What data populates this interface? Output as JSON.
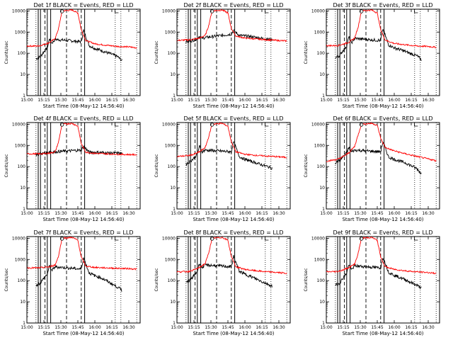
{
  "window": {
    "background": "#ffffff"
  },
  "chart_data": {
    "type": "line",
    "colors": {
      "events": "#000000",
      "lld": "#ff0000"
    },
    "y_scale": "log",
    "ylim": [
      1,
      12000
    ],
    "yticks": [
      1,
      10,
      100,
      1000,
      10000
    ],
    "ytick_labels": [
      "1",
      "10",
      "100",
      "1000",
      "10000"
    ],
    "xlim": [
      "15:00",
      "16:40"
    ],
    "xticks": [
      "15:00",
      "15:15",
      "15:30",
      "15:45",
      "16:00",
      "16:15",
      "16:30"
    ],
    "xlabel": "Start Time (08-May-12 14:56:40)",
    "ylabel": "Counts/sec",
    "marker_lines": {
      "solid": [
        "15:10",
        "15:12",
        "15:18",
        "15:21",
        "15:51"
      ],
      "dashed": [
        "15:16",
        "15:35",
        "15:48"
      ],
      "dotted": [
        "15:08",
        "16:18",
        "16:23",
        "16:37"
      ]
    },
    "panels": [
      {
        "title": "Det 1f BLACK = Events, RED = LLD",
        "series": [
          {
            "name": "BLACK = Events",
            "x": [
              "15:08",
              "15:12",
              "15:15",
              "15:18",
              "15:20",
              "15:22",
              "15:25",
              "15:48",
              "15:50",
              "15:55",
              "16:00",
              "16:05",
              "16:10",
              "16:15",
              "16:20",
              "16:24"
            ],
            "values": [
              55,
              70,
              120,
              180,
              500,
              300,
              450,
              350,
              1200,
              230,
              170,
              140,
              110,
              90,
              70,
              45
            ]
          },
          {
            "name": "RED = LLD",
            "x": [
              "15:00",
              "15:10",
              "15:15",
              "15:20",
              "15:25",
              "15:28",
              "15:31",
              "15:40",
              "15:45",
              "15:48",
              "15:52",
              "16:00",
              "16:10",
              "16:20",
              "16:30",
              "16:37"
            ],
            "values": [
              220,
              220,
              260,
              320,
              500,
              1500,
              10000,
              11000,
              8000,
              1300,
              400,
              280,
              240,
              210,
              200,
              180
            ]
          }
        ]
      },
      {
        "title": "Det 2f BLACK = Events, RED = LLD",
        "series": [
          {
            "name": "BLACK = Events",
            "x": [
              "15:08",
              "15:12",
              "15:15",
              "15:18",
              "15:20",
              "15:22",
              "15:25",
              "15:48",
              "15:50",
              "15:55",
              "16:00",
              "16:05",
              "16:10",
              "16:15",
              "16:20",
              "16:24"
            ],
            "values": [
              350,
              380,
              420,
              500,
              650,
              500,
              550,
              800,
              1200,
              700,
              650,
              620,
              560,
              500,
              470,
              440
            ]
          },
          {
            "name": "RED = LLD",
            "x": [
              "15:00",
              "15:10",
              "15:15",
              "15:20",
              "15:25",
              "15:28",
              "15:31",
              "15:40",
              "15:45",
              "15:48",
              "15:52",
              "16:00",
              "16:10",
              "16:20",
              "16:30",
              "16:37"
            ],
            "values": [
              400,
              430,
              460,
              520,
              700,
              2000,
              10000,
              11000,
              8000,
              1500,
              650,
              520,
              470,
              430,
              400,
              380
            ]
          }
        ]
      },
      {
        "title": "Det 3f BLACK = Events, RED = LLD",
        "series": [
          {
            "name": "BLACK = Events",
            "x": [
              "15:08",
              "15:12",
              "15:15",
              "15:18",
              "15:20",
              "15:22",
              "15:25",
              "15:48",
              "15:50",
              "15:55",
              "16:00",
              "16:05",
              "16:10",
              "16:15",
              "16:20",
              "16:24"
            ],
            "values": [
              60,
              80,
              140,
              220,
              600,
              300,
              500,
              400,
              1400,
              250,
              180,
              150,
              120,
              95,
              75,
              50
            ]
          },
          {
            "name": "RED = LLD",
            "x": [
              "15:00",
              "15:10",
              "15:15",
              "15:20",
              "15:25",
              "15:28",
              "15:31",
              "15:40",
              "15:45",
              "15:48",
              "15:52",
              "16:00",
              "16:10",
              "16:20",
              "16:30",
              "16:37"
            ],
            "values": [
              230,
              230,
              270,
              330,
              520,
              1600,
              10000,
              11000,
              8000,
              1300,
              420,
              290,
              250,
              220,
              210,
              190
            ]
          }
        ]
      },
      {
        "title": "Det 4f BLACK = Events, RED = LLD",
        "series": [
          {
            "name": "BLACK = Events",
            "x": [
              "15:08",
              "15:12",
              "15:15",
              "15:18",
              "15:20",
              "15:22",
              "15:25",
              "15:48",
              "15:50",
              "15:55",
              "16:00",
              "16:05",
              "16:10",
              "16:15",
              "16:20",
              "16:24"
            ],
            "values": [
              380,
              400,
              420,
              450,
              520,
              480,
              500,
              600,
              900,
              480,
              470,
              460,
              450,
              440,
              430,
              420
            ]
          },
          {
            "name": "RED = LLD",
            "x": [
              "15:00",
              "15:10",
              "15:15",
              "15:20",
              "15:25",
              "15:28",
              "15:31",
              "15:40",
              "15:45",
              "15:48",
              "15:52",
              "16:00",
              "16:10",
              "16:20",
              "16:30",
              "16:37"
            ],
            "values": [
              400,
              400,
              410,
              430,
              500,
              1500,
              10000,
              11000,
              8000,
              1200,
              480,
              420,
              400,
              380,
              370,
              360
            ]
          }
        ]
      },
      {
        "title": "Det 5f BLACK = Events, RED = LLD",
        "series": [
          {
            "name": "BLACK = Events",
            "x": [
              "15:08",
              "15:12",
              "15:15",
              "15:18",
              "15:20",
              "15:22",
              "15:25",
              "15:48",
              "15:50",
              "15:55",
              "16:00",
              "16:05",
              "16:10",
              "16:15",
              "16:20",
              "16:24"
            ],
            "values": [
              130,
              180,
              250,
              400,
              900,
              500,
              600,
              500,
              1500,
              300,
              220,
              180,
              150,
              120,
              100,
              85
            ]
          },
          {
            "name": "RED = LLD",
            "x": [
              "15:00",
              "15:10",
              "15:15",
              "15:20",
              "15:25",
              "15:28",
              "15:31",
              "15:40",
              "15:45",
              "15:48",
              "15:52",
              "16:00",
              "16:10",
              "16:20",
              "16:30",
              "16:37"
            ],
            "values": [
              300,
              330,
              380,
              500,
              800,
              2500,
              10000,
              11000,
              8000,
              1500,
              500,
              380,
              340,
              310,
              290,
              270
            ]
          }
        ]
      },
      {
        "title": "Det 6f BLACK = Events, RED = LLD",
        "series": [
          {
            "name": "BLACK = Events",
            "x": [
              "15:08",
              "15:12",
              "15:15",
              "15:18",
              "15:20",
              "15:22",
              "15:25",
              "15:48",
              "15:50",
              "15:55",
              "16:00",
              "16:05",
              "16:10",
              "16:15",
              "16:20",
              "16:24"
            ],
            "values": [
              150,
              200,
              300,
              450,
              800,
              500,
              600,
              500,
              1500,
              280,
              220,
              180,
              150,
              110,
              80,
              45
            ]
          },
          {
            "name": "RED = LLD",
            "x": [
              "15:00",
              "15:10",
              "15:15",
              "15:20",
              "15:25",
              "15:28",
              "15:31",
              "15:40",
              "15:45",
              "15:48",
              "15:52",
              "16:00",
              "16:10",
              "16:20",
              "16:30",
              "16:37"
            ],
            "values": [
              180,
              220,
              300,
              450,
              900,
              3000,
              10000,
              11000,
              9000,
              2200,
              800,
              550,
              400,
              300,
              230,
              190
            ]
          }
        ]
      },
      {
        "title": "Det 7f BLACK = Events, RED = LLD",
        "series": [
          {
            "name": "BLACK = Events",
            "x": [
              "15:08",
              "15:12",
              "15:15",
              "15:18",
              "15:20",
              "15:22",
              "15:25",
              "15:48",
              "15:50",
              "15:55",
              "16:00",
              "16:05",
              "16:10",
              "16:15",
              "16:20",
              "16:24"
            ],
            "values": [
              60,
              80,
              130,
              200,
              500,
              300,
              450,
              350,
              1200,
              230,
              170,
              140,
              100,
              70,
              50,
              35
            ]
          },
          {
            "name": "RED = LLD",
            "x": [
              "15:00",
              "15:10",
              "15:15",
              "15:20",
              "15:25",
              "15:28",
              "15:31",
              "15:40",
              "15:45",
              "15:48",
              "15:52",
              "16:00",
              "16:10",
              "16:20",
              "16:30",
              "16:37"
            ],
            "values": [
              400,
              400,
              420,
              450,
              550,
              1500,
              10000,
              11000,
              8000,
              1300,
              480,
              420,
              400,
              380,
              370,
              350
            ]
          }
        ]
      },
      {
        "title": "Det 8f BLACK = Events, RED = LLD",
        "series": [
          {
            "name": "BLACK = Events",
            "x": [
              "15:08",
              "15:12",
              "15:15",
              "15:18",
              "15:20",
              "15:22",
              "15:25",
              "15:48",
              "15:50",
              "15:55",
              "16:00",
              "16:05",
              "16:10",
              "16:15",
              "16:20",
              "16:24"
            ],
            "values": [
              80,
              110,
              170,
              280,
              700,
              400,
              550,
              450,
              1400,
              280,
              200,
              160,
              120,
              90,
              70,
              55
            ]
          },
          {
            "name": "RED = LLD",
            "x": [
              "15:00",
              "15:10",
              "15:15",
              "15:20",
              "15:25",
              "15:28",
              "15:31",
              "15:40",
              "15:45",
              "15:48",
              "15:52",
              "16:00",
              "16:10",
              "16:20",
              "16:30",
              "16:37"
            ],
            "values": [
              260,
              270,
              320,
              420,
              650,
              2000,
              10000,
              11000,
              8000,
              1400,
              450,
              340,
              290,
              260,
              240,
              220
            ]
          }
        ]
      },
      {
        "title": "Det 9f BLACK = Events, RED = LLD",
        "series": [
          {
            "name": "BLACK = Events",
            "x": [
              "15:08",
              "15:12",
              "15:15",
              "15:18",
              "15:20",
              "15:22",
              "15:25",
              "15:48",
              "15:50",
              "15:55",
              "16:00",
              "16:05",
              "16:10",
              "16:15",
              "16:20",
              "16:24"
            ],
            "values": [
              60,
              80,
              140,
              230,
              600,
              320,
              500,
              400,
              1300,
              250,
              180,
              140,
              110,
              80,
              60,
              45
            ]
          },
          {
            "name": "RED = LLD",
            "x": [
              "15:00",
              "15:10",
              "15:15",
              "15:20",
              "15:25",
              "15:28",
              "15:31",
              "15:40",
              "15:45",
              "15:48",
              "15:52",
              "16:00",
              "16:10",
              "16:20",
              "16:30",
              "16:37"
            ],
            "values": [
              260,
              270,
              320,
              420,
              600,
              1800,
              10000,
              11000,
              8000,
              1300,
              450,
              340,
              290,
              260,
              240,
              220
            ]
          }
        ]
      }
    ]
  }
}
